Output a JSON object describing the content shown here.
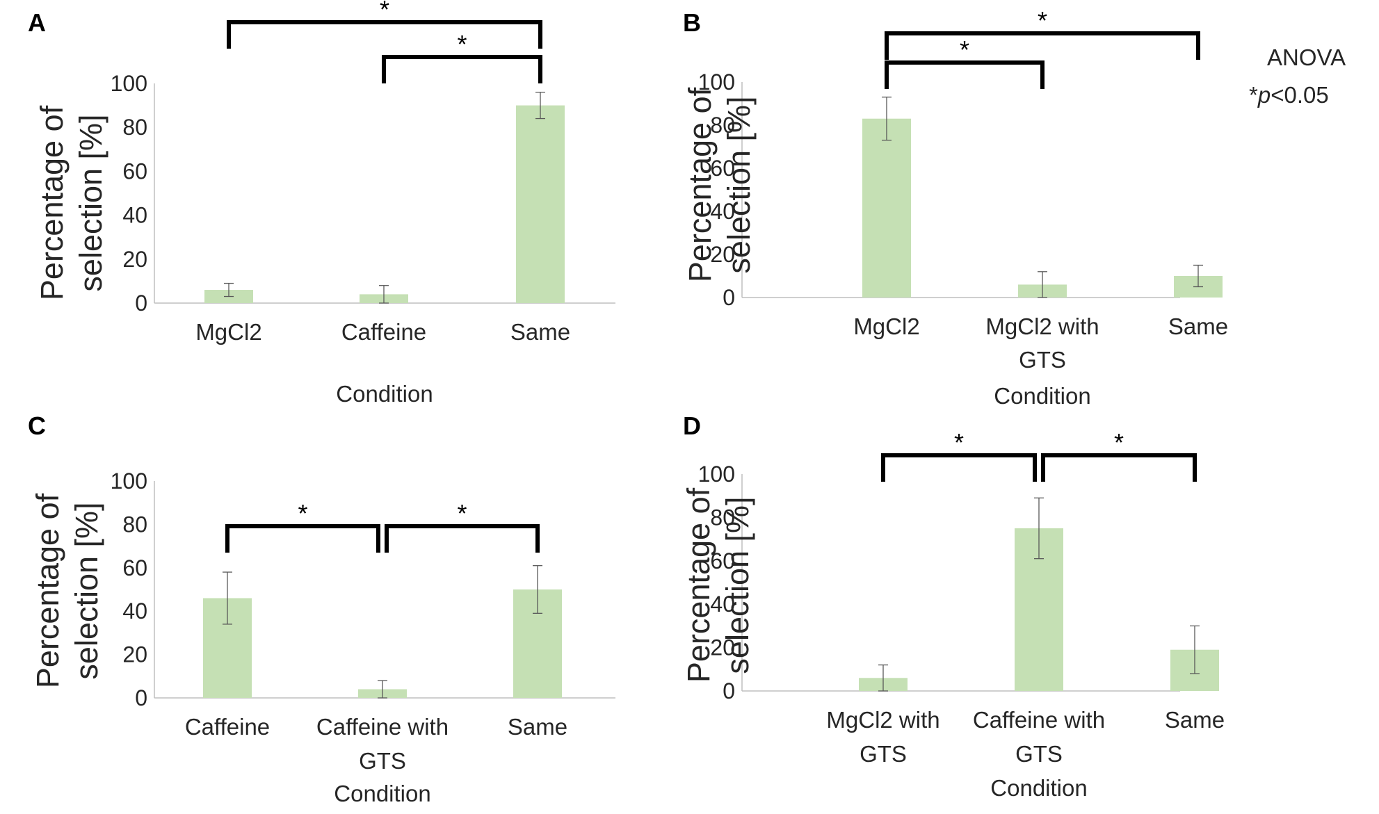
{
  "annotation": {
    "line1": "ANOVA",
    "line2_star": "*",
    "line2_p": "p",
    "line2_rest": "<0.05"
  },
  "chart_data": [
    {
      "panel": "A",
      "type": "bar",
      "categories": [
        "MgCl2",
        "Caffeine",
        "Same"
      ],
      "values": [
        6,
        4,
        90
      ],
      "errors": [
        3,
        4,
        6
      ],
      "ylabel": "Percentage of selection [%]",
      "xlabel": "Condition",
      "ylim": [
        0,
        100
      ],
      "yticks": [
        0,
        20,
        40,
        60,
        80,
        100
      ],
      "bar_color": "#c5e0b4",
      "brackets": [
        {
          "from": 0,
          "to": 2,
          "level": 2,
          "label": "*"
        },
        {
          "from": 1,
          "to": 2,
          "level": 1,
          "label": "*"
        }
      ]
    },
    {
      "panel": "B",
      "type": "bar",
      "categories": [
        "MgCl2",
        "MgCl2 with GTS",
        "Same"
      ],
      "values": [
        83,
        6,
        10
      ],
      "errors": [
        10,
        6,
        5
      ],
      "ylabel": "Percentage of selection [%]",
      "xlabel": "Condition",
      "ylim": [
        0,
        100
      ],
      "yticks": [
        0,
        20,
        40,
        60,
        80,
        100
      ],
      "bar_color": "#c5e0b4",
      "brackets": [
        {
          "from": 0,
          "to": 2,
          "level": 2,
          "label": "*"
        },
        {
          "from": 0,
          "to": 1,
          "level": 1,
          "label": "*"
        }
      ]
    },
    {
      "panel": "C",
      "type": "bar",
      "categories": [
        "Caffeine",
        "Caffeine with GTS",
        "Same"
      ],
      "values": [
        46,
        4,
        50
      ],
      "errors": [
        12,
        4,
        11
      ],
      "ylabel": "Percentage of selection [%]",
      "xlabel": "Condition",
      "ylim": [
        0,
        100
      ],
      "yticks": [
        0,
        20,
        40,
        60,
        80,
        100
      ],
      "bar_color": "#c5e0b4",
      "brackets": [
        {
          "from": 0,
          "to": 1,
          "level": 1,
          "label": "*"
        },
        {
          "from": 1,
          "to": 2,
          "level": 1,
          "label": "*"
        }
      ]
    },
    {
      "panel": "D",
      "type": "bar",
      "categories": [
        "MgCl2 with GTS",
        "Caffeine with GTS",
        "Same"
      ],
      "values": [
        6,
        75,
        19
      ],
      "errors": [
        6,
        14,
        11
      ],
      "ylabel": "Percentage of selection [%]",
      "xlabel": "Condition",
      "ylim": [
        0,
        100
      ],
      "yticks": [
        0,
        20,
        40,
        60,
        80,
        100
      ],
      "bar_color": "#c5e0b4",
      "brackets": [
        {
          "from": 0,
          "to": 1,
          "level": 1,
          "label": "*"
        },
        {
          "from": 1,
          "to": 2,
          "level": 1,
          "label": "*"
        }
      ]
    }
  ]
}
